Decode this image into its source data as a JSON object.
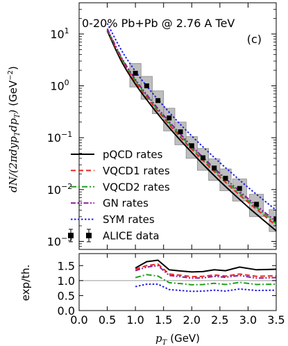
{
  "chart_data": [
    {
      "type": "line",
      "panel": "main",
      "annotation_title": "0-20% Pb+Pb @ 2.76 A TeV",
      "annotation_label": "(c)",
      "ylabel": "dN/(2πdyp_Tdp_T) (GeV⁻²)",
      "ylabel_main": "dN/(2πdyp",
      "ylabel_sub1": "T",
      "ylabel_mid": "dp",
      "ylabel_sub2": "T",
      "ylabel_close": ")",
      "ylabel_unit": "(GeV",
      "ylabel_unit_exp": "−2",
      "ylabel_unit_close": ")",
      "y_scale": "log",
      "ylim": [
        0.0007,
        40
      ],
      "y_ticks": [
        {
          "value": 0.001,
          "base": "10",
          "exp": "−3"
        },
        {
          "value": 0.01,
          "base": "10",
          "exp": "−2"
        },
        {
          "value": 0.1,
          "base": "10",
          "exp": "−1"
        },
        {
          "value": 1,
          "base": "10",
          "exp": "0"
        },
        {
          "value": 10,
          "base": "10",
          "exp": "1"
        }
      ],
      "xlim": [
        0.0,
        3.5
      ],
      "legend_position": "lower-left",
      "series": [
        {
          "name": "pQCD rates",
          "color": "#000000",
          "dash": "solid",
          "x": [
            0.5,
            0.75,
            1.0,
            1.25,
            1.5,
            1.75,
            2.0,
            2.25,
            2.5,
            2.75,
            3.0,
            3.25,
            3.5
          ],
          "y": [
            11.5,
            3.0,
            1.08,
            0.46,
            0.21,
            0.102,
            0.052,
            0.027,
            0.0145,
            0.0081,
            0.0046,
            0.0027,
            0.0016
          ]
        },
        {
          "name": "VQCD1 rates",
          "color": "#e8251f",
          "dash": "dashed",
          "x": [
            0.5,
            0.75,
            1.0,
            1.25,
            1.5,
            1.75,
            2.0,
            2.25,
            2.5,
            2.75,
            3.0,
            3.25,
            3.5
          ],
          "y": [
            12.0,
            3.3,
            1.2,
            0.52,
            0.24,
            0.117,
            0.06,
            0.032,
            0.0175,
            0.0098,
            0.0057,
            0.0034,
            0.002
          ]
        },
        {
          "name": "VQCD2 rates",
          "color": "#1e9e1e",
          "dash": "dashdot",
          "x": [
            0.5,
            0.75,
            1.0,
            1.25,
            1.5,
            1.75,
            2.0,
            2.25,
            2.5,
            2.75,
            3.0,
            3.25,
            3.5
          ],
          "y": [
            12.3,
            3.45,
            1.27,
            0.55,
            0.256,
            0.126,
            0.065,
            0.035,
            0.019,
            0.0107,
            0.0062,
            0.0037,
            0.0022
          ]
        },
        {
          "name": "GN rates",
          "color": "#8c1a9e",
          "dash": "dashdotdot",
          "x": [
            0.5,
            0.75,
            1.0,
            1.25,
            1.5,
            1.75,
            2.0,
            2.25,
            2.5,
            2.75,
            3.0,
            3.25,
            3.5
          ],
          "y": [
            12.7,
            3.6,
            1.33,
            0.58,
            0.272,
            0.134,
            0.069,
            0.037,
            0.0205,
            0.0116,
            0.0067,
            0.004,
            0.0024
          ]
        },
        {
          "name": "SYM rates",
          "color": "#1f1fe8",
          "dash": "dotted",
          "x": [
            0.5,
            0.75,
            1.0,
            1.25,
            1.5,
            1.75,
            2.0,
            2.25,
            2.5,
            2.75,
            3.0,
            3.25,
            3.5
          ],
          "y": [
            16.0,
            4.9,
            1.9,
            0.85,
            0.41,
            0.205,
            0.108,
            0.059,
            0.033,
            0.019,
            0.011,
            0.0066,
            0.004
          ]
        }
      ],
      "data_series": {
        "name": "ALICE data",
        "color": "#000000",
        "x": [
          1.0,
          1.2,
          1.4,
          1.6,
          1.8,
          2.0,
          2.2,
          2.4,
          2.6,
          2.85,
          3.15,
          3.5
        ],
        "y": [
          1.75,
          1.0,
          0.52,
          0.24,
          0.13,
          0.07,
          0.041,
          0.026,
          0.0165,
          0.0105,
          0.0052,
          0.0027
        ],
        "sys_low": [
          0.95,
          0.55,
          0.29,
          0.135,
          0.073,
          0.04,
          0.0235,
          0.015,
          0.0095,
          0.006,
          0.003,
          0.00155
        ],
        "sys_high": [
          2.7,
          1.52,
          0.8,
          0.37,
          0.2,
          0.105,
          0.062,
          0.039,
          0.025,
          0.016,
          0.0081,
          0.0041
        ],
        "x_halfwidth": [
          0.1,
          0.1,
          0.1,
          0.1,
          0.1,
          0.1,
          0.1,
          0.1,
          0.1,
          0.125,
          0.125,
          0.125
        ]
      }
    },
    {
      "type": "line",
      "panel": "ratio",
      "ylabel": "exp/th.",
      "xlabel": "p_T (GeV)",
      "xlabel_var": "p",
      "xlabel_sub": "T",
      "xlabel_unit": "(GeV)",
      "xlim": [
        0.0,
        3.5
      ],
      "ylim": [
        0.0,
        1.9
      ],
      "x_ticks": [
        "0.0",
        "0.5",
        "1.0",
        "1.5",
        "2.0",
        "2.5",
        "3.0",
        "3.5"
      ],
      "y_ticks": [
        "0.0",
        "0.5",
        "1.0",
        "1.5"
      ],
      "reference_line": 1.0,
      "x": [
        1.0,
        1.2,
        1.4,
        1.6,
        1.8,
        2.0,
        2.2,
        2.4,
        2.6,
        2.85,
        3.15,
        3.5
      ],
      "series": [
        {
          "name": "pQCD rates",
          "color": "#000000",
          "dash": "solid",
          "y": [
            1.42,
            1.63,
            1.68,
            1.36,
            1.32,
            1.29,
            1.3,
            1.36,
            1.33,
            1.45,
            1.36,
            1.38
          ]
        },
        {
          "name": "VQCD1 rates",
          "color": "#e8251f",
          "dash": "dashed",
          "y": [
            1.38,
            1.5,
            1.55,
            1.22,
            1.18,
            1.13,
            1.14,
            1.19,
            1.15,
            1.22,
            1.14,
            1.16
          ]
        },
        {
          "name": "GN rates",
          "color": "#8c1a9e",
          "dash": "dashdotdot",
          "y": [
            1.33,
            1.45,
            1.5,
            1.17,
            1.13,
            1.08,
            1.09,
            1.14,
            1.11,
            1.17,
            1.08,
            1.1
          ]
        },
        {
          "name": "VQCD2 rates",
          "color": "#1e9e1e",
          "dash": "dashdot",
          "y": [
            1.1,
            1.2,
            1.15,
            0.93,
            0.9,
            0.86,
            0.87,
            0.91,
            0.87,
            0.94,
            0.87,
            0.88
          ]
        },
        {
          "name": "SYM rates",
          "color": "#1f1fe8",
          "dash": "dotted",
          "y": [
            0.8,
            0.88,
            0.88,
            0.7,
            0.67,
            0.64,
            0.65,
            0.68,
            0.65,
            0.72,
            0.67,
            0.68
          ]
        }
      ]
    }
  ]
}
